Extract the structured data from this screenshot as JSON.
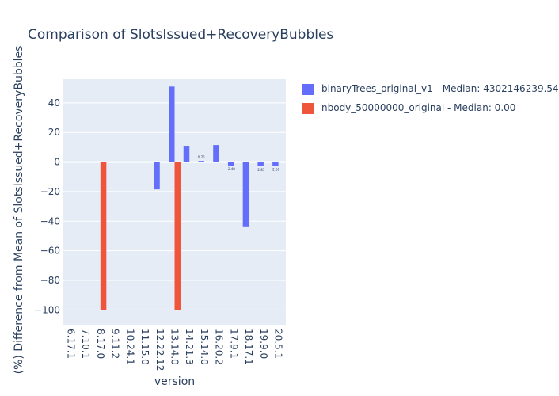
{
  "chart_data": {
    "type": "bar",
    "title": "Comparison of SlotsIssued+RecoveryBubbles",
    "xlabel": "version",
    "ylabel": "(%) Difference from Mean of SlotsIssued+RecoveryBubbles",
    "ylim": [
      -110,
      56
    ],
    "yticks": [
      -100,
      -80,
      -60,
      -40,
      -20,
      0,
      20,
      40
    ],
    "ytick_labels": [
      "−100",
      "−80",
      "−60",
      "−40",
      "−20",
      "0",
      "20",
      "40"
    ],
    "grid": true,
    "legend_position": "top-right",
    "categories": [
      "6.17.1",
      "7.10.1",
      "8.17.0",
      "9.11.2",
      "10.24.1",
      "11.15.0",
      "12.22.12",
      "13.14.0",
      "14.21.3",
      "15.14.0",
      "16.20.2",
      "17.9.1",
      "18.17.1",
      "19.9.0",
      "20.5.1"
    ],
    "series": [
      {
        "name": "binaryTrees_original_v1 - Median: 4302146239.54",
        "color": "#636efa",
        "values": [
          null,
          null,
          null,
          null,
          null,
          null,
          -18.5,
          51,
          11,
          0.75,
          11.5,
          -2.48,
          -43.5,
          -2.87,
          -2.66
        ],
        "labels": [
          null,
          null,
          null,
          null,
          null,
          null,
          null,
          null,
          null,
          "0.75",
          null,
          "-2.48",
          null,
          "-2.87",
          "-2.66"
        ]
      },
      {
        "name": "nbody_50000000_original - Median: 0.00",
        "color": "#ef553b",
        "values": [
          null,
          null,
          -100,
          null,
          null,
          null,
          null,
          -100,
          null,
          null,
          null,
          null,
          null,
          null,
          null
        ],
        "labels": []
      }
    ]
  }
}
